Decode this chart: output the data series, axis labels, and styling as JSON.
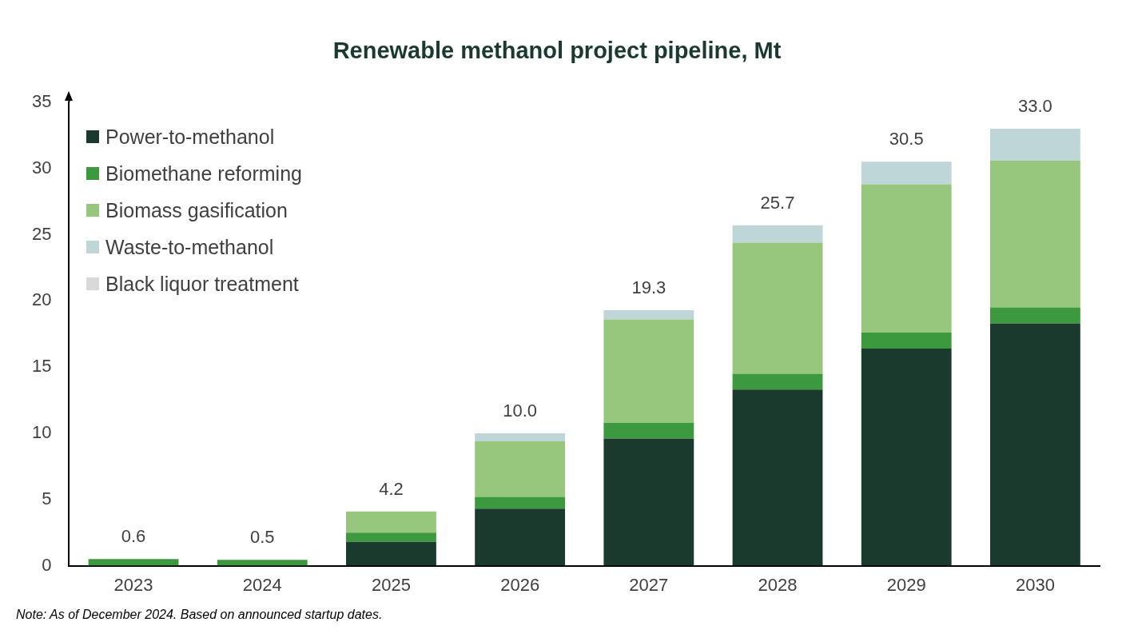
{
  "chart_data": {
    "type": "bar",
    "title": "Renewable methanol project pipeline, Mt",
    "categories": [
      "2023",
      "2024",
      "2025",
      "2026",
      "2027",
      "2028",
      "2029",
      "2030"
    ],
    "stacked": true,
    "series": [
      {
        "name": "Power-to-methanol",
        "color": "#1a3a2e",
        "values": [
          0,
          0,
          1.8,
          4.3,
          9.6,
          13.3,
          16.4,
          18.3
        ]
      },
      {
        "name": "Biomethane reforming",
        "color": "#3d993d",
        "values": [
          0.5,
          0.45,
          0.7,
          0.9,
          1.2,
          1.2,
          1.2,
          1.2
        ]
      },
      {
        "name": "Biomass gasification",
        "color": "#96c77d",
        "values": [
          0,
          0,
          1.6,
          4.2,
          7.8,
          9.9,
          11.2,
          11.1
        ]
      },
      {
        "name": "Waste-to-methanol",
        "color": "#bfd6d8",
        "values": [
          0,
          0,
          0,
          0.6,
          0.7,
          1.3,
          1.7,
          2.4
        ]
      },
      {
        "name": "Black liquor treatment",
        "color": "#d9d9d9",
        "values": [
          null,
          null,
          null,
          0,
          0,
          0,
          0,
          0
        ]
      }
    ],
    "totals": [
      "0.6",
      "0.5",
      "4.2",
      "10.0",
      "19.3",
      "25.7",
      "30.5",
      "33.0"
    ],
    "ylim": [
      0,
      35
    ],
    "yticks": [
      0,
      5,
      10,
      15,
      20,
      25,
      30,
      35
    ],
    "grid": false,
    "legend": "top left",
    "annotations": [
      "Note: As of December 2024. Based on announced startup dates."
    ]
  }
}
